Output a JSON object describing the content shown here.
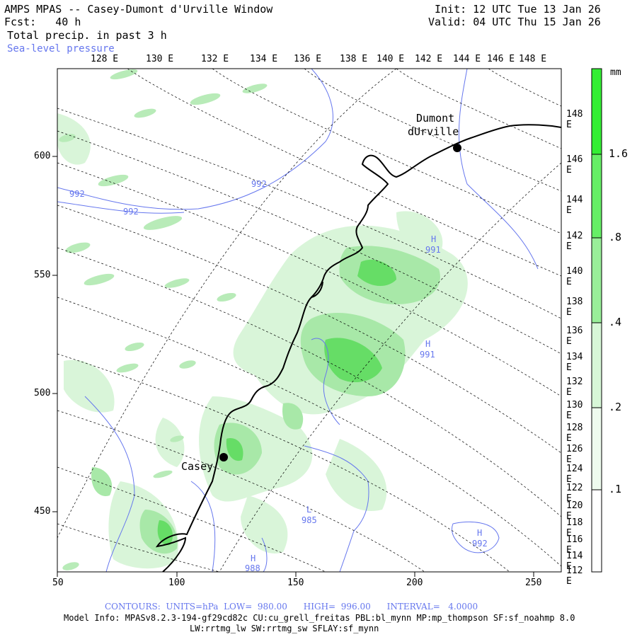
{
  "header": {
    "title": "AMPS MPAS -- Casey-Dumont d'Urville Window",
    "fcst_label": "Fcst:",
    "fcst_value": "40 h",
    "field": "Total precip. in past 3 h",
    "overlay": "Sea-level pressure",
    "init": "Init: 12 UTC Tue 13 Jan 26",
    "valid": "Valid: 04 UTC Thu 15 Jan 26"
  },
  "top_lon_labels": [
    "128 E",
    "130 E",
    "132 E",
    "134 E",
    "136 E",
    "138 E",
    "140 E",
    "142 E",
    "144 E",
    "146 E",
    "148 E"
  ],
  "right_lon_labels": [
    "148 E",
    "146 E",
    "144 E",
    "142 E",
    "140 E",
    "138 E",
    "136 E",
    "134 E",
    "132 E",
    "130 E",
    "128 E",
    "126 E",
    "124 E",
    "122 E",
    "120 E",
    "118 E",
    "116 E",
    "114 E",
    "112 E"
  ],
  "x_axis": [
    "50",
    "100",
    "150",
    "200",
    "250"
  ],
  "y_axis": [
    "600",
    "550",
    "500",
    "450"
  ],
  "stations": [
    {
      "name": "Casey"
    },
    {
      "name_line1": "Dumont",
      "name_line2": "dUrville"
    }
  ],
  "pressure_labels": [
    "992",
    "992",
    "992",
    "H",
    "991",
    "H",
    "991",
    "L",
    "985",
    "H",
    "992",
    "H",
    "988"
  ],
  "colorbar": {
    "unit": "mm",
    "ticks": [
      "1.6",
      ".8",
      ".4",
      ".2",
      ".1"
    ],
    "colors": [
      "#33ee33",
      "#66ee66",
      "#99ee99",
      "#ccf5cc",
      "#eefbee"
    ],
    "fractions": [
      0.0,
      0.2,
      0.4,
      0.56,
      0.76
    ]
  },
  "footer": {
    "contours": "CONTOURS:  UNITS=hPa  LOW=  980.00      HIGH=  996.00      INTERVAL=   4.0000",
    "model_info": "Model Info: MPASv8.2.3-194-gf29cd82c CU:cu_grell_freitas PBL:bl_mynn MP:mp_thompson SF:sf_noahmp 8.0",
    "model_info2": "LW:rrtmg_lw SW:rrtmg_sw SFLAY:sf_mynn"
  },
  "colors": {
    "coast": "#000000",
    "slp": "#6677ee",
    "precip_light": "#ccf2cc",
    "precip_mid": "#99e699",
    "precip_strong": "#66dd66"
  }
}
